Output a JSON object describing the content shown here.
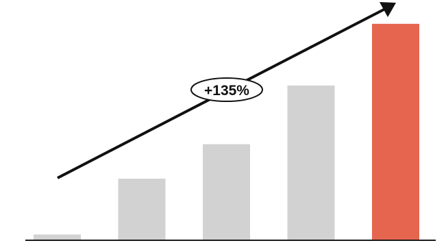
{
  "chart_data": {
    "type": "bar",
    "categories": [
      "",
      "",
      "",
      "",
      ""
    ],
    "values": [
      4,
      43,
      67,
      108,
      151
    ],
    "ylim": [
      0,
      160
    ],
    "grid": false,
    "legend": "none",
    "colors": {
      "default_bar": "#d3d2d2",
      "highlight_bar": "#e5654f",
      "axis": "#1a1a1a",
      "arrow": "#111111"
    },
    "highlight_index": 4,
    "annotations": [
      {
        "text": "+135%",
        "kind": "trend-arrow-label"
      }
    ]
  }
}
